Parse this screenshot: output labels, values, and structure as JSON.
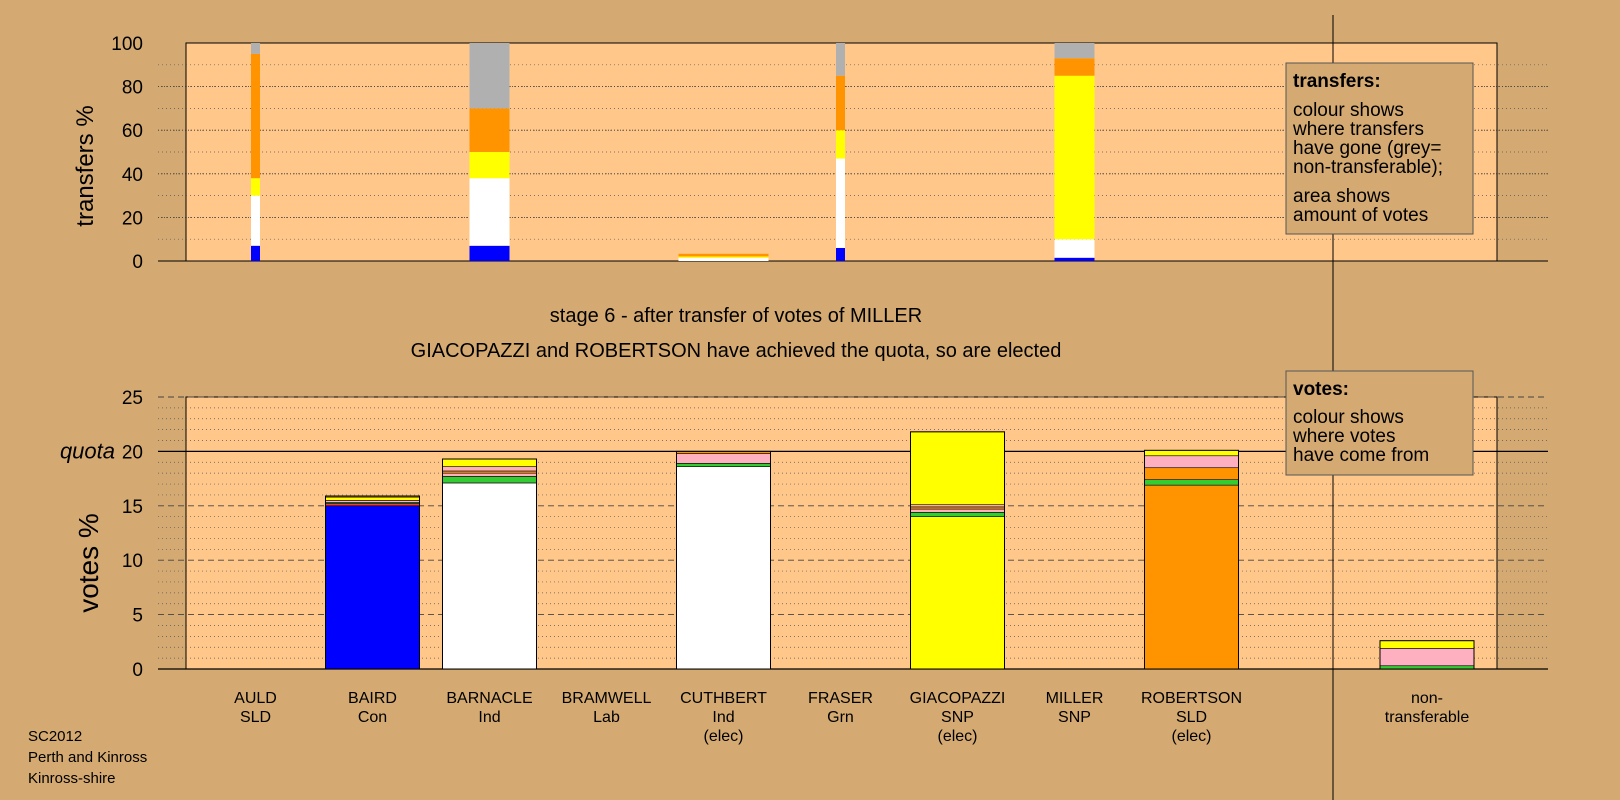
{
  "colors": {
    "background": "#d4aa72",
    "plot_bg": "#ffc88a",
    "Con": "#0000ff",
    "Ind": "#ffffff",
    "SNP": "#ffff00",
    "SLD": "#ff9400",
    "Lab": "#f23c3c",
    "Grn": "#33cc33",
    "pink": "#ffb0c0",
    "nontransferable": "#b0b0b0",
    "nontrans_bar_base": "#33cc33"
  },
  "stage_text": "stage 6 - after transfer of votes of MILLER",
  "elected_text": "GIACOPAZZI and ROBERTSON have achieved the quota, so are elected",
  "footer": [
    "SC2012",
    "Perth and Kinross",
    "Kinross-shire"
  ],
  "legend_transfers": {
    "title": "transfers:",
    "lines1": [
      "colour shows",
      "where transfers",
      "have gone (grey=",
      "non-transferable);"
    ],
    "lines2": [
      "area shows",
      "amount of votes"
    ]
  },
  "legend_votes": {
    "title": "votes:",
    "lines": [
      "colour shows",
      "where votes",
      "have come from"
    ]
  },
  "candidates": [
    {
      "name": "AULD",
      "party": "SLD",
      "note": ""
    },
    {
      "name": "BAIRD",
      "party": "Con",
      "note": ""
    },
    {
      "name": "BARNACLE",
      "party": "Ind",
      "note": ""
    },
    {
      "name": "BRAMWELL",
      "party": "Lab",
      "note": ""
    },
    {
      "name": "CUTHBERT",
      "party": "Ind",
      "note": "(elec)"
    },
    {
      "name": "FRASER",
      "party": "Grn",
      "note": ""
    },
    {
      "name": "GIACOPAZZI",
      "party": "SNP",
      "note": "(elec)"
    },
    {
      "name": "MILLER",
      "party": "SNP",
      "note": ""
    },
    {
      "name": "ROBERTSON",
      "party": "SLD",
      "note": "(elec)"
    }
  ],
  "nontransferable_label": [
    "non-",
    "transferable"
  ],
  "chart_data": [
    {
      "type": "bar",
      "ylabel": "transfers %",
      "ylim": [
        0,
        100
      ],
      "yticks": [
        0,
        20,
        40,
        60,
        80,
        100
      ],
      "bars": [
        {
          "candidate": "AULD",
          "width": "narrow",
          "segments": [
            {
              "color": "Con",
              "value": 7
            },
            {
              "color": "Ind",
              "value": 23
            },
            {
              "color": "SNP",
              "value": 8
            },
            {
              "color": "SLD",
              "value": 57
            },
            {
              "color": "nontransferable",
              "value": 5
            }
          ]
        },
        {
          "candidate": "BARNACLE",
          "width": "wide",
          "segments": [
            {
              "color": "Con",
              "value": 7
            },
            {
              "color": "Ind",
              "value": 31
            },
            {
              "color": "SNP",
              "value": 12
            },
            {
              "color": "SLD",
              "value": 20
            },
            {
              "color": "nontransferable",
              "value": 30
            }
          ]
        },
        {
          "candidate": "CUTHBERT",
          "width": "full",
          "segments": [
            {
              "color": "Ind",
              "value": 1.5
            },
            {
              "color": "SNP",
              "value": 0.6
            },
            {
              "color": "SLD",
              "value": 1.2
            }
          ]
        },
        {
          "candidate": "FRASER",
          "width": "narrow",
          "segments": [
            {
              "color": "Con",
              "value": 6
            },
            {
              "color": "Ind",
              "value": 41
            },
            {
              "color": "SNP",
              "value": 13
            },
            {
              "color": "SLD",
              "value": 25
            },
            {
              "color": "nontransferable",
              "value": 15
            }
          ]
        },
        {
          "candidate": "MILLER",
          "width": "wide",
          "segments": [
            {
              "color": "Con",
              "value": 1.5
            },
            {
              "color": "Ind",
              "value": 8.5
            },
            {
              "color": "SNP",
              "value": 75
            },
            {
              "color": "SLD",
              "value": 8
            },
            {
              "color": "nontransferable",
              "value": 7
            }
          ]
        }
      ]
    },
    {
      "type": "bar",
      "ylabel": "votes %",
      "ylim": [
        0,
        25
      ],
      "yticks": [
        0,
        5,
        10,
        15,
        20,
        25
      ],
      "quota": 20,
      "quota_label": "quota",
      "bars": [
        {
          "candidate": "BAIRD",
          "segments": [
            {
              "color": "Con",
              "value": 15.0
            },
            {
              "color": "Lab",
              "value": 0.2
            },
            {
              "color": "Grn",
              "value": 0.1
            },
            {
              "color": "pink",
              "value": 0.2
            },
            {
              "color": "SNP",
              "value": 0.3
            },
            {
              "color": "SLD",
              "value": 0.1
            }
          ]
        },
        {
          "candidate": "BARNACLE",
          "segments": [
            {
              "color": "Ind",
              "value": 17.1
            },
            {
              "color": "Grn",
              "value": 0.6
            },
            {
              "color": "pink",
              "value": 0.3
            },
            {
              "color": "SLD",
              "value": 0.2
            },
            {
              "color": "pink",
              "value": 0.4
            },
            {
              "color": "SNP",
              "value": 0.7
            }
          ]
        },
        {
          "candidate": "CUTHBERT",
          "segments": [
            {
              "color": "Ind",
              "value": 18.6
            },
            {
              "color": "Grn",
              "value": 0.3
            },
            {
              "color": "pink",
              "value": 0.9
            },
            {
              "color": "SLD",
              "value": 0.2
            }
          ]
        },
        {
          "candidate": "GIACOPAZZI",
          "segments": [
            {
              "color": "SNP",
              "value": 14.0
            },
            {
              "color": "Grn",
              "value": 0.4
            },
            {
              "color": "pink",
              "value": 0.3
            },
            {
              "color": "SLD",
              "value": 0.2
            },
            {
              "color": "pink",
              "value": 0.2
            },
            {
              "color": "SNP",
              "value": 6.7
            }
          ]
        },
        {
          "candidate": "ROBERTSON",
          "segments": [
            {
              "color": "SLD",
              "value": 16.9
            },
            {
              "color": "Grn",
              "value": 0.5
            },
            {
              "color": "SLD",
              "value": 1.1
            },
            {
              "color": "pink",
              "value": 1.1
            },
            {
              "color": "SNP",
              "value": 0.5
            }
          ]
        },
        {
          "candidate": "non-transferable",
          "segments": [
            {
              "color": "Grn",
              "value": 0.3
            },
            {
              "color": "pink",
              "value": 1.6
            },
            {
              "color": "SNP",
              "value": 0.7
            }
          ]
        }
      ]
    }
  ]
}
